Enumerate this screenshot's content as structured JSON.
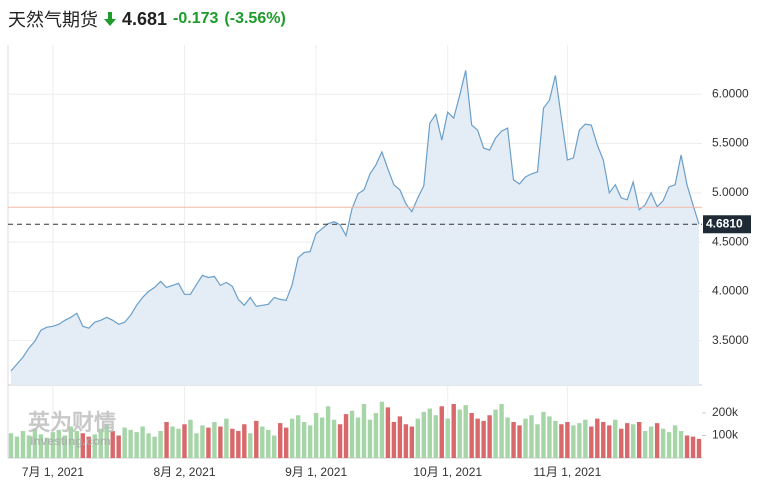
{
  "header": {
    "title": "天然气期货",
    "price": "4.681",
    "change": "-0.173",
    "change_pct": "(-3.56%)"
  },
  "watermark": {
    "brand": "英为财情",
    "site": "Investing.com"
  },
  "chart_data": [
    {
      "type": "line",
      "color": "#6a9fcb",
      "fill": "#e4edf6",
      "grid": true,
      "x": [
        0,
        1,
        2,
        3,
        4,
        5,
        6,
        7,
        8,
        9,
        10,
        11,
        12,
        13,
        14,
        15,
        16,
        17,
        18,
        19,
        20,
        21,
        22,
        23,
        24,
        25,
        26,
        27,
        28,
        29,
        30,
        31,
        32,
        33,
        34,
        35,
        36,
        37,
        38,
        39,
        40,
        41,
        42,
        43,
        44,
        45,
        46,
        47,
        48,
        49,
        50,
        51,
        52,
        53,
        54,
        55,
        56,
        57,
        58,
        59,
        60,
        61,
        62,
        63,
        64,
        65,
        66,
        67,
        68,
        69,
        70,
        71,
        72,
        73,
        74,
        75,
        76,
        77,
        78,
        79,
        80,
        81,
        82,
        83,
        84,
        85,
        86,
        87,
        88,
        89,
        90,
        91,
        92,
        93,
        94,
        95,
        96,
        97,
        98,
        99,
        100,
        101,
        102,
        103,
        104,
        105,
        106,
        107,
        108,
        109,
        110,
        111,
        112,
        113,
        114,
        115
      ],
      "values": [
        3.192,
        3.263,
        3.333,
        3.424,
        3.495,
        3.606,
        3.636,
        3.646,
        3.667,
        3.707,
        3.737,
        3.778,
        3.646,
        3.626,
        3.687,
        3.707,
        3.737,
        3.707,
        3.667,
        3.687,
        3.758,
        3.859,
        3.939,
        4.0,
        4.04,
        4.101,
        4.04,
        4.061,
        4.081,
        3.97,
        3.97,
        4.071,
        4.162,
        4.141,
        4.152,
        4.061,
        4.091,
        4.051,
        3.919,
        3.859,
        3.939,
        3.848,
        3.859,
        3.869,
        3.939,
        3.919,
        3.909,
        4.071,
        4.343,
        4.394,
        4.404,
        4.586,
        4.636,
        4.687,
        4.707,
        4.677,
        4.566,
        4.838,
        4.99,
        5.03,
        5.192,
        5.283,
        5.414,
        5.242,
        5.081,
        5.03,
        4.889,
        4.808,
        4.949,
        5.071,
        5.707,
        5.798,
        5.535,
        5.818,
        5.758,
        5.99,
        6.242,
        5.687,
        5.636,
        5.455,
        5.434,
        5.556,
        5.626,
        5.657,
        5.131,
        5.091,
        5.162,
        5.192,
        5.212,
        5.859,
        5.939,
        6.192,
        5.758,
        5.333,
        5.354,
        5.636,
        5.697,
        5.687,
        5.485,
        5.333,
        5.0,
        5.081,
        4.949,
        4.929,
        5.111,
        4.828,
        4.879,
        5.0,
        4.859,
        4.919,
        5.061,
        5.081,
        5.384,
        5.081,
        4.879,
        4.681
      ],
      "last_price": {
        "value": 4.681,
        "label": "4.6810"
      },
      "prev_close": 4.854,
      "xlim": [
        -0.5,
        115.5
      ],
      "xticks": [
        {
          "value": 7,
          "label": "7月 1, 2021"
        },
        {
          "value": 29,
          "label": "8月 2, 2021"
        },
        {
          "value": 51,
          "label": "9月 1, 2021"
        },
        {
          "value": 73,
          "label": "10月 1, 2021"
        },
        {
          "value": 93,
          "label": "11月 1, 2021"
        }
      ],
      "ylim": [
        3.05,
        6.5
      ],
      "yticks": [
        {
          "value": 3.5,
          "label": "3.5000"
        },
        {
          "value": 4,
          "label": "4.0000"
        },
        {
          "value": 4.5,
          "label": "4.5000"
        },
        {
          "value": 5,
          "label": "5.0000"
        },
        {
          "value": 5.5,
          "label": "5.5000"
        },
        {
          "value": 6,
          "label": "6.0000"
        }
      ]
    },
    {
      "type": "bar",
      "up_color": "#a6d5a8",
      "down_color": "#d9686b",
      "values": [
        110000,
        95000,
        120000,
        100000,
        130000,
        105000,
        90000,
        115000,
        125000,
        100000,
        140000,
        120000,
        110000,
        95000,
        105000,
        130000,
        150000,
        120000,
        100000,
        135000,
        125000,
        115000,
        140000,
        110000,
        95000,
        120000,
        160000,
        140000,
        130000,
        150000,
        170000,
        110000,
        145000,
        135000,
        160000,
        140000,
        175000,
        130000,
        120000,
        150000,
        110000,
        165000,
        140000,
        125000,
        100000,
        155000,
        135000,
        175000,
        190000,
        160000,
        145000,
        200000,
        180000,
        230000,
        170000,
        150000,
        195000,
        210000,
        180000,
        240000,
        170000,
        200000,
        250000,
        225000,
        160000,
        185000,
        150000,
        140000,
        175000,
        205000,
        220000,
        190000,
        230000,
        175000,
        240000,
        215000,
        235000,
        200000,
        175000,
        165000,
        190000,
        215000,
        240000,
        180000,
        160000,
        145000,
        175000,
        190000,
        150000,
        205000,
        185000,
        165000,
        150000,
        160000,
        145000,
        155000,
        170000,
        140000,
        175000,
        160000,
        145000,
        170000,
        130000,
        155000,
        150000,
        160000,
        120000,
        140000,
        155000,
        130000,
        115000,
        145000,
        120000,
        100000,
        95000,
        85000
      ],
      "ylim": [
        0,
        280000
      ],
      "yticks": [
        {
          "value": 100000,
          "label": "100k"
        },
        {
          "value": 200000,
          "label": "200k"
        }
      ]
    }
  ]
}
